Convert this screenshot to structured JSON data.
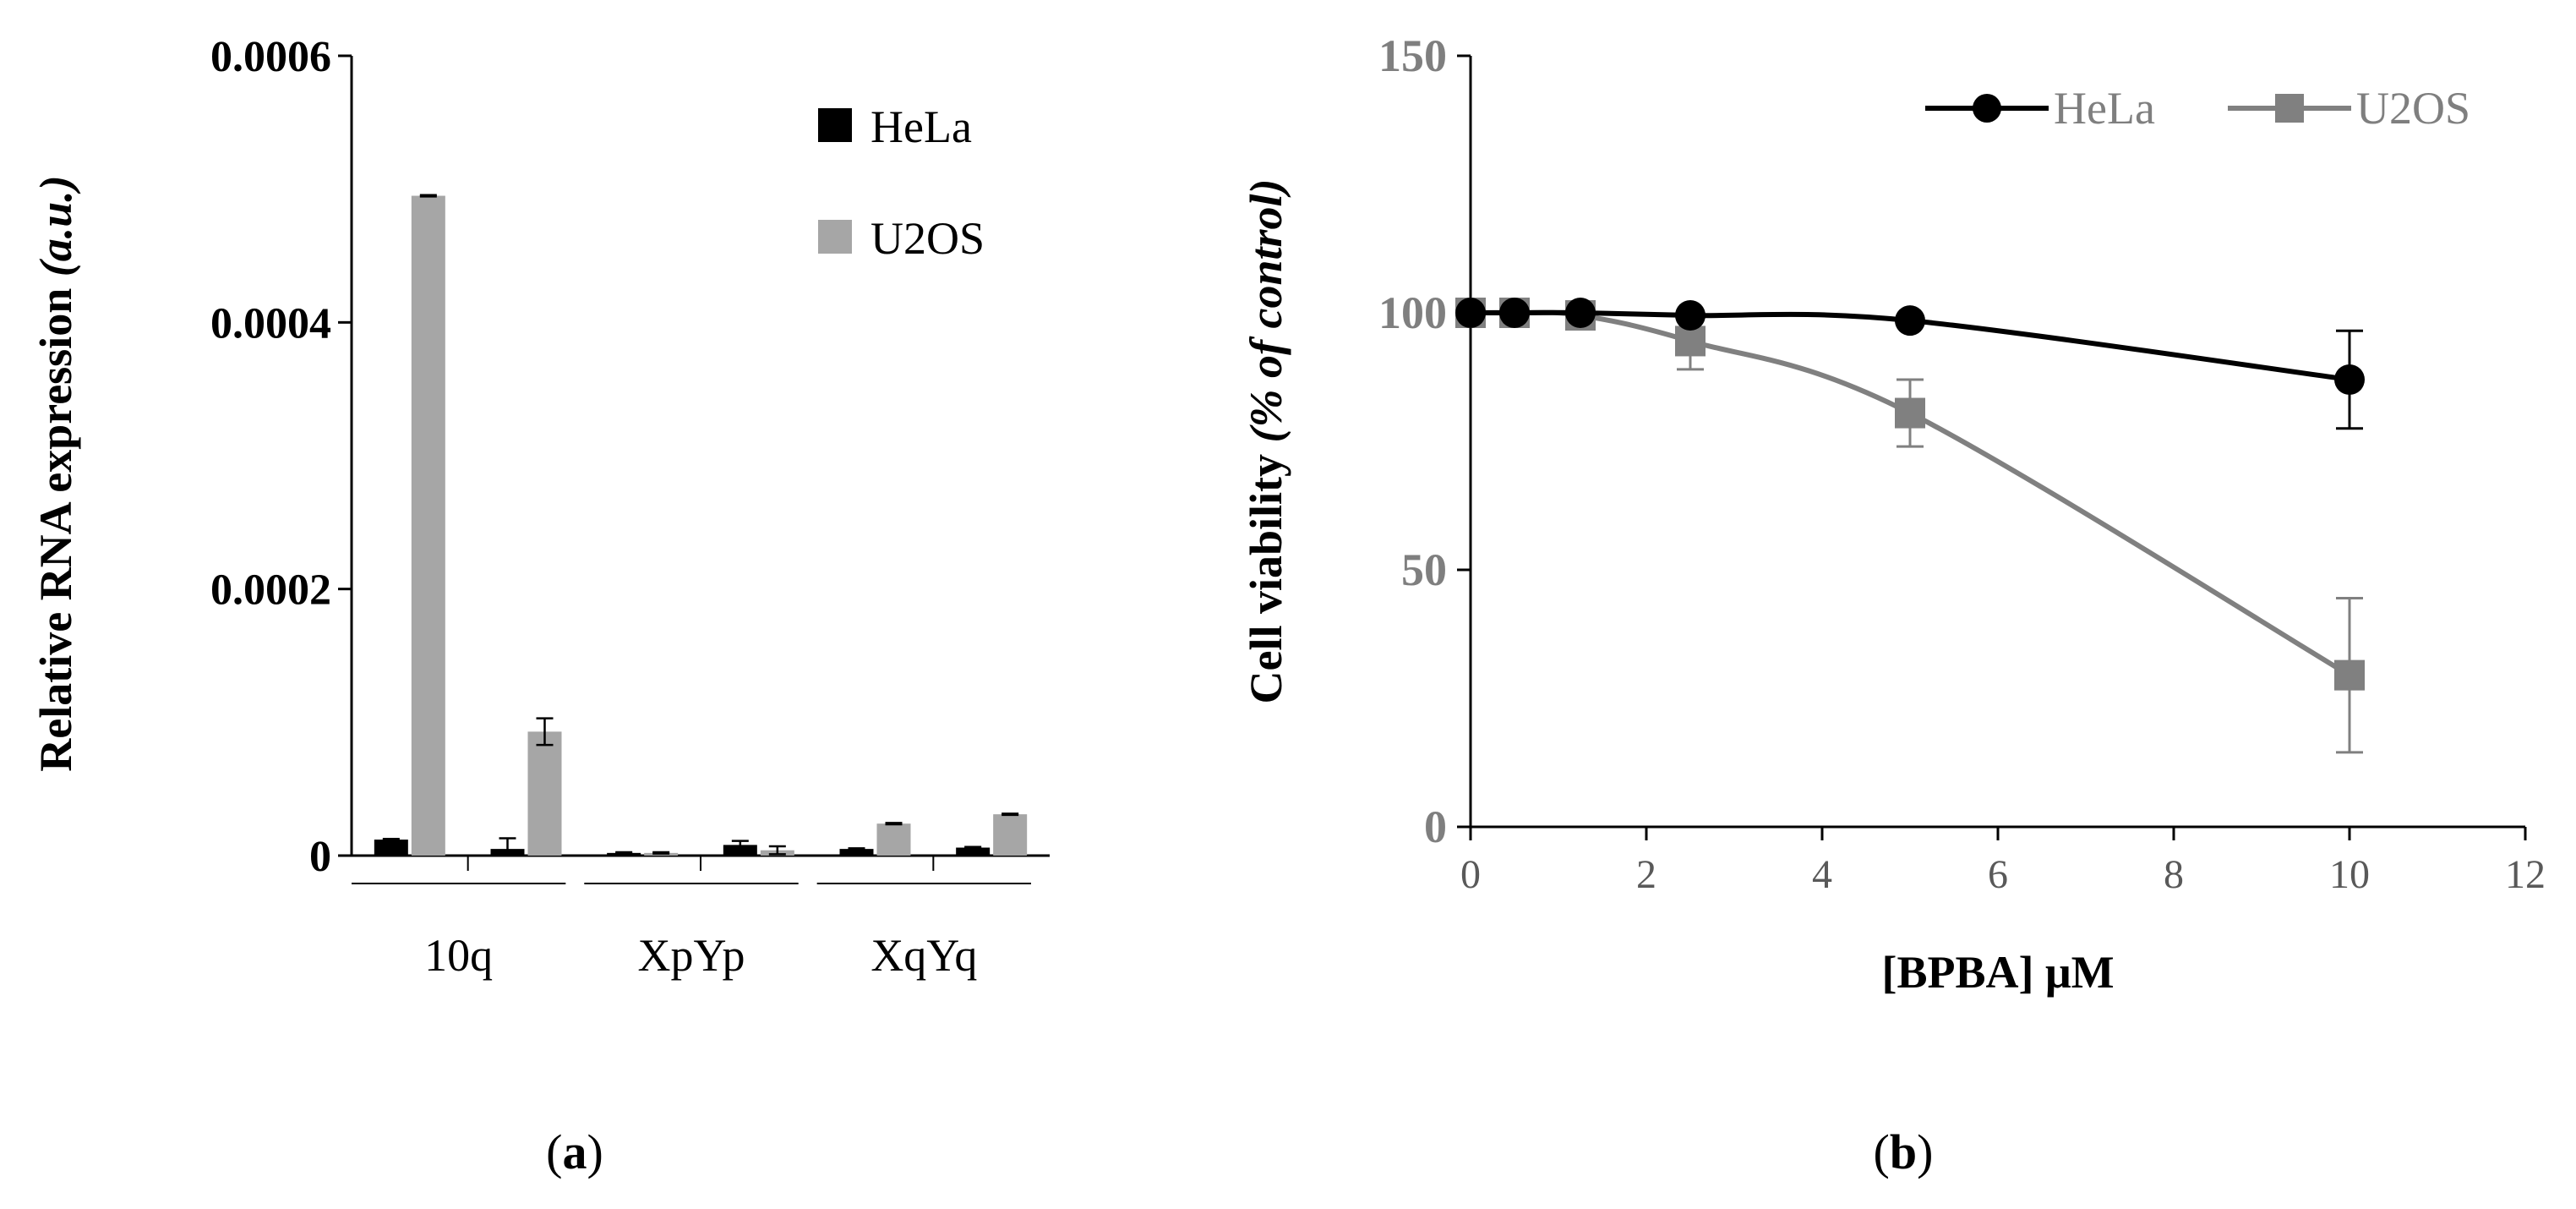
{
  "panels": {
    "a_label": "a",
    "b_label": "b"
  },
  "chart_data": [
    {
      "type": "bar",
      "panel": "a",
      "ylabel": "Relative RNA expression",
      "ylabel_unit": "(a.u.)",
      "ylim": [
        0,
        0.0006
      ],
      "yticks": [
        "0",
        "0.0002",
        "0.0004",
        "0.0006"
      ],
      "groups": [
        "10q",
        "XpYp",
        "XqYq"
      ],
      "bars_per_group": 2,
      "legend_position": "top-right",
      "colors": {
        "HeLa": "#000000",
        "U2OS": "#a6a6a6"
      },
      "series": [
        {
          "name": "HeLa",
          "values": [
            1.2e-05,
            5e-06,
            2e-06,
            8e-06,
            5e-06,
            6e-06
          ]
        },
        {
          "name": "U2OS",
          "values": [
            0.000495,
            9.3e-05,
            2e-06,
            4e-06,
            2.4e-05,
            3.1e-05
          ]
        }
      ],
      "errors": {
        "HeLa": [
          5e-07,
          8e-06,
          5e-07,
          3e-06,
          5e-07,
          5e-07
        ],
        "U2OS": [
          5e-07,
          1e-05,
          5e-07,
          3e-06,
          5e-07,
          5e-07
        ]
      }
    },
    {
      "type": "line",
      "panel": "b",
      "xlabel": "[BPBA] μM",
      "ylabel": "Cell viability",
      "ylabel_unit": "(% of control)",
      "xlim": [
        0,
        12
      ],
      "ylim": [
        0,
        150
      ],
      "xticks": [
        "0",
        "2",
        "4",
        "6",
        "8",
        "10",
        "12"
      ],
      "yticks": [
        "0",
        "50",
        "100",
        "150"
      ],
      "legend_position": "top-right",
      "colors": {
        "HeLa": "#000000",
        "U2OS": "#808080"
      },
      "series": [
        {
          "name": "HeLa",
          "marker": "circle",
          "x": [
            0,
            0.5,
            1.25,
            2.5,
            5,
            10
          ],
          "y": [
            100,
            100,
            100,
            99.5,
            98.5,
            87
          ],
          "err": [
            0,
            0,
            0,
            0,
            0,
            9.5
          ]
        },
        {
          "name": "U2OS",
          "marker": "square",
          "x": [
            0,
            0.5,
            1.25,
            2.5,
            5,
            10
          ],
          "y": [
            100,
            100,
            99.5,
            94.5,
            80.5,
            29.5
          ],
          "err": [
            0,
            0,
            0,
            5.5,
            6.5,
            15
          ]
        }
      ]
    }
  ]
}
